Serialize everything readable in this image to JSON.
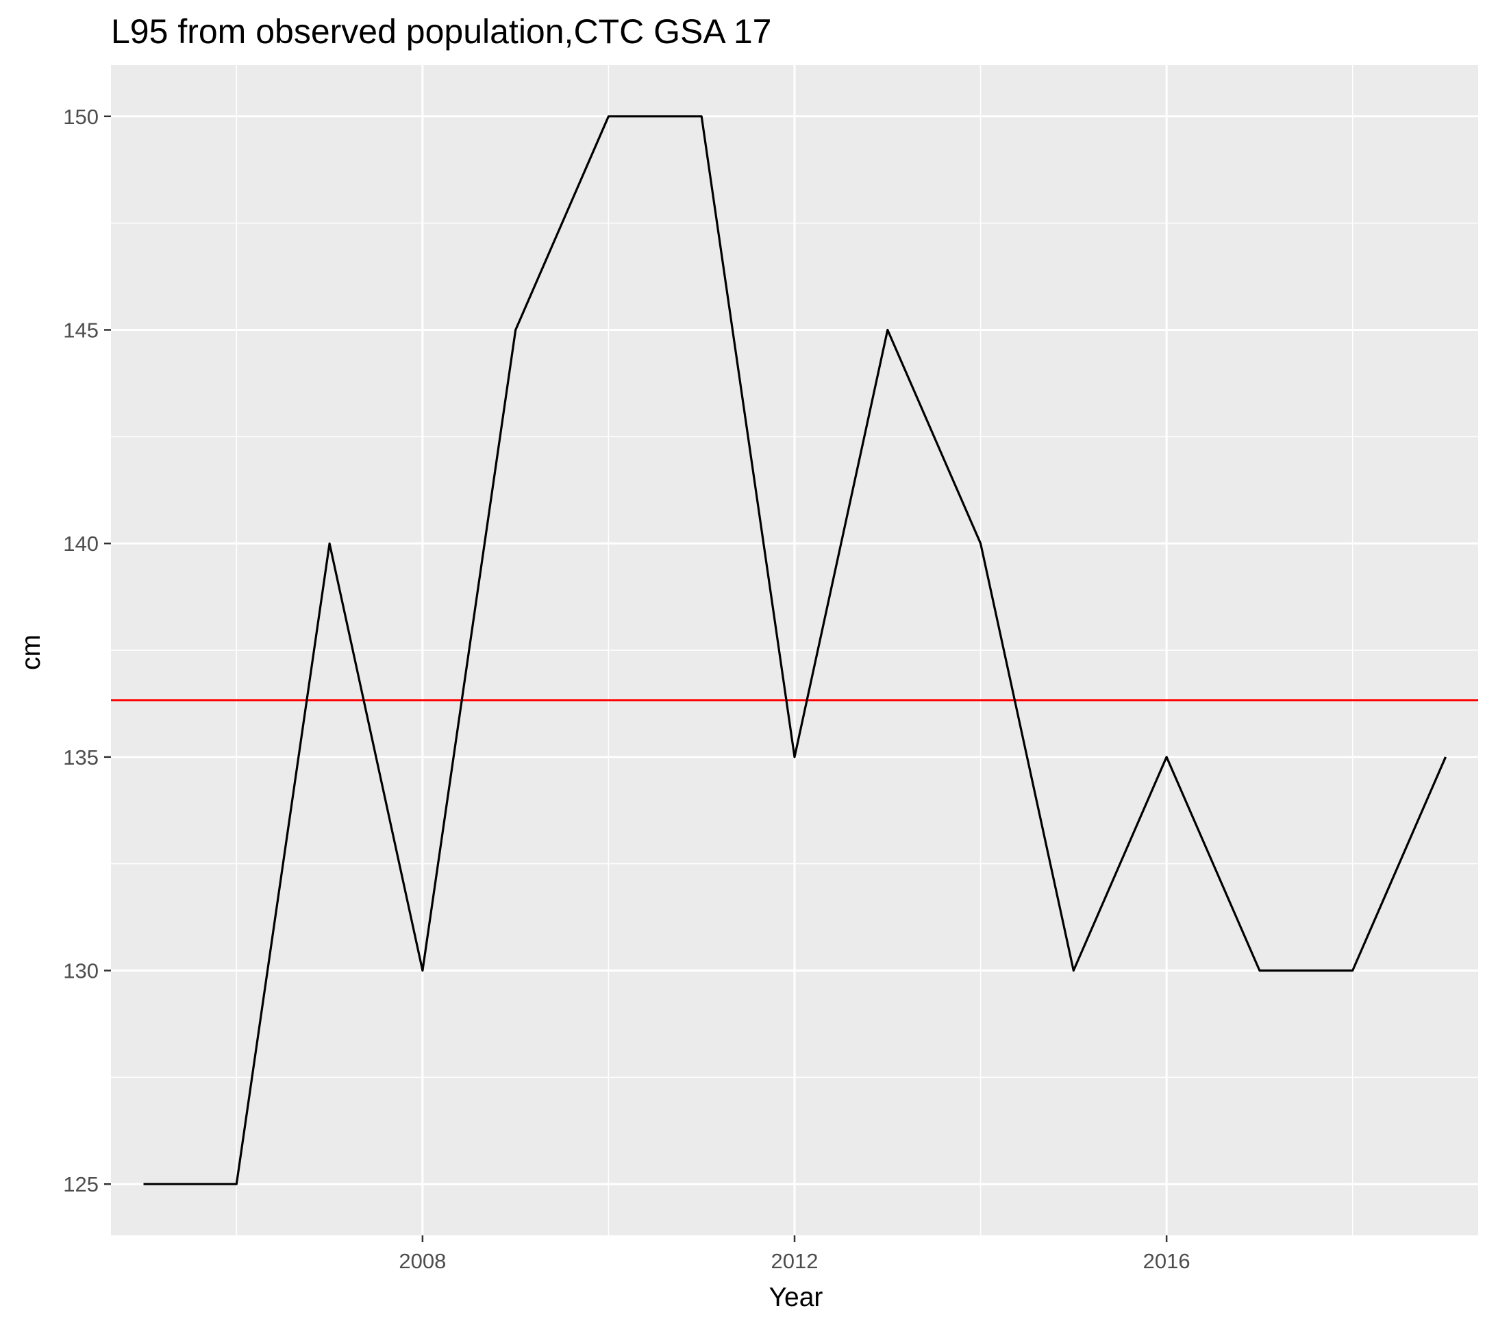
{
  "chart_data": {
    "type": "line",
    "title": "L95 from observed population,CTC GSA 17",
    "xlabel": "Year",
    "ylabel": "cm",
    "xlim": [
      2004.65,
      2019.35
    ],
    "ylim": [
      123.8,
      151.2
    ],
    "x_ticks": [
      2008,
      2012,
      2016
    ],
    "x_tick_labels": [
      "2008",
      "2012",
      "2016"
    ],
    "y_ticks": [
      125,
      130,
      135,
      140,
      145,
      150
    ],
    "y_tick_labels": [
      "125",
      "130",
      "135",
      "140",
      "145",
      "150"
    ],
    "grid": true,
    "legend": "none",
    "series": [
      {
        "x": [
          2005,
          2006,
          2007,
          2008,
          2009,
          2010,
          2011,
          2012,
          2013,
          2014,
          2015,
          2016,
          2017,
          2018,
          2019
        ],
        "values": [
          125,
          125,
          140,
          130,
          145,
          150,
          150,
          135,
          145,
          140,
          130,
          135,
          130,
          130,
          135
        ],
        "color": "#000000"
      }
    ],
    "reference_line": {
      "y": 136.33,
      "color": "#ff0000"
    }
  },
  "colors": {
    "panel_background": "#ebebeb",
    "grid": "#ffffff",
    "tick_text": "#4d4d4d",
    "tick_mark": "#333333"
  }
}
